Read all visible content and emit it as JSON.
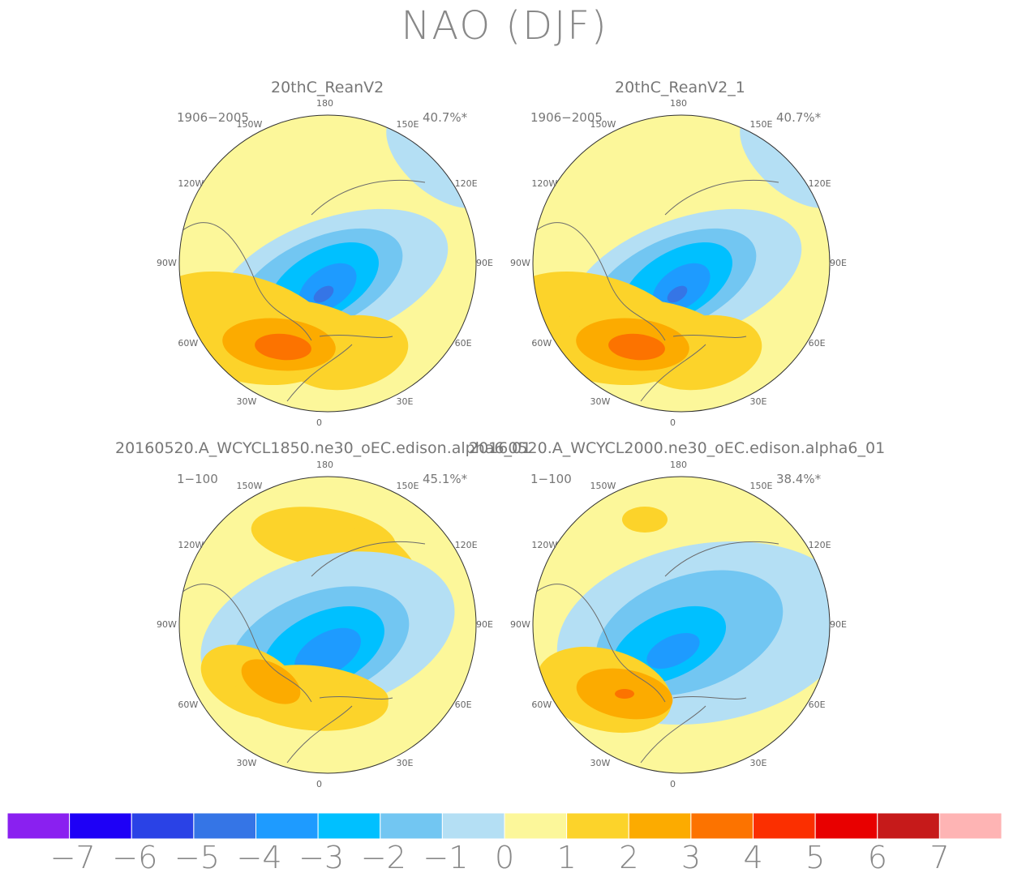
{
  "figure": {
    "title": "NAO (DJF)"
  },
  "colors": {
    "coast": "#6b6b6b",
    "levels": [
      "#8a20f0",
      "#1e00f6",
      "#2a42e6",
      "#3575e6",
      "#1e9bff",
      "#00c0ff",
      "#72c6f2",
      "#b4dff4",
      "#fcf79a",
      "#fcd32a",
      "#fcab00",
      "#fc7300",
      "#fb2f00",
      "#e80000",
      "#c61a1a",
      "#feb4b4"
    ]
  },
  "colorbar": {
    "labels": [
      "−7",
      "−6",
      "−5",
      "−4",
      "−3",
      "−2",
      "−1",
      "0",
      "1",
      "2",
      "3",
      "4",
      "5",
      "6",
      "7"
    ]
  },
  "lon_labels": [
    "180",
    "150E",
    "120E",
    "90E",
    "60E",
    "30E",
    "0",
    "30W",
    "60W",
    "90W",
    "120W",
    "150W"
  ],
  "panels": [
    {
      "title": "20thC_ReanV2",
      "period": "1906−2005",
      "pct": "40.7%*"
    },
    {
      "title": "20thC_ReanV2_1",
      "period": "1906−2005",
      "pct": "40.7%*"
    },
    {
      "title": "20160520.A_WCYCL1850.ne30_oEC.edison.alpha6_01",
      "period": "1−100",
      "pct": "45.1%*"
    },
    {
      "title": "20160520.A_WCYCL2000.ne30_oEC.edison.alpha6_01",
      "period": "1−100",
      "pct": "38.4%*"
    }
  ]
}
